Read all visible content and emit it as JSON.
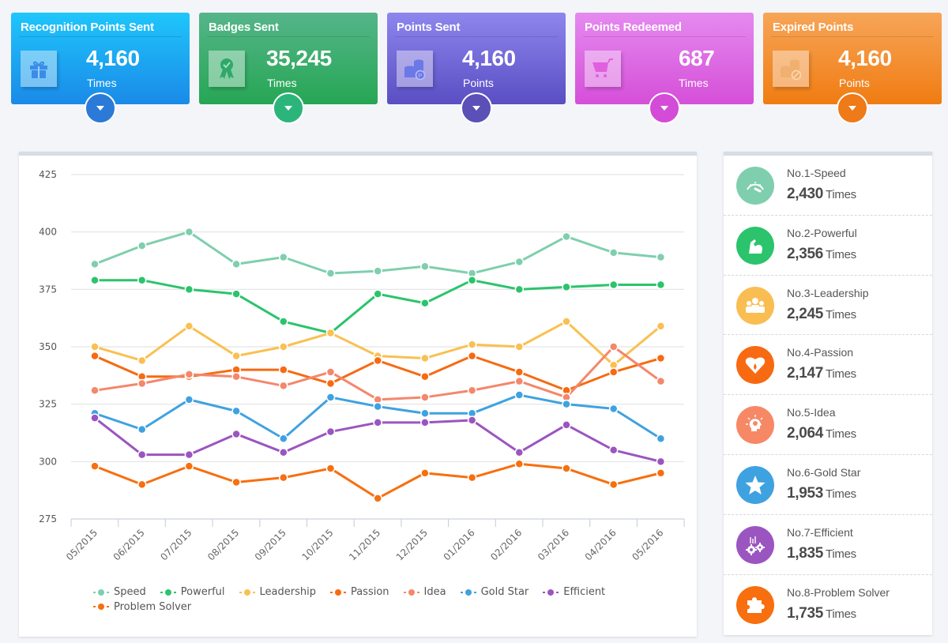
{
  "stat_cards": [
    {
      "title": "Recognition Points Sent",
      "value": "4,160",
      "unit": "Times",
      "icon": "gift-icon",
      "colors": {
        "top": "#1fc6fb",
        "bottom": "#1a8ae8",
        "toggle": "#2b7ad8"
      }
    },
    {
      "title": "Badges Sent",
      "value": "35,245",
      "unit": "Times",
      "icon": "badge-ribbon-icon",
      "colors": {
        "top": "#55b58a",
        "bottom": "#26a654",
        "toggle": "#2bb57a"
      }
    },
    {
      "title": "Points Sent",
      "value": "4,160",
      "unit": "Points",
      "icon": "coins-icon",
      "colors": {
        "top": "#8e86ee",
        "bottom": "#5a4ec3",
        "toggle": "#5b4fb8"
      }
    },
    {
      "title": "Points Redeemed",
      "value": "687",
      "unit": "Times",
      "icon": "shopping-cart-icon",
      "colors": {
        "top": "#e58af0",
        "bottom": "#d54fd8",
        "toggle": "#d44bd8"
      }
    },
    {
      "title": "Expired Points",
      "value": "4,160",
      "unit": "Points",
      "icon": "expired-coins-icon",
      "colors": {
        "top": "#f7a558",
        "bottom": "#f07c12",
        "toggle": "#ee7a18"
      }
    }
  ],
  "ranking": [
    {
      "label": "No.1-Speed",
      "count": "2,430",
      "unit": "Times",
      "icon": "speedometer-icon",
      "color": "#7fcfae"
    },
    {
      "label": "No.2-Powerful",
      "count": "2,356",
      "unit": "Times",
      "icon": "flexed-arm-icon",
      "color": "#2bc46c"
    },
    {
      "label": "No.3-Leadership",
      "count": "2,245",
      "unit": "Times",
      "icon": "group-icon",
      "color": "#f9bd52"
    },
    {
      "label": "No.4-Passion",
      "count": "2,147",
      "unit": "Times",
      "icon": "heart-flame-icon",
      "color": "#f76a12"
    },
    {
      "label": "No.5-Idea",
      "count": "2,064",
      "unit": "Times",
      "icon": "lightbulb-head-icon",
      "color": "#f78866"
    },
    {
      "label": "No.6-Gold Star",
      "count": "1,953",
      "unit": "Times",
      "icon": "star-icon",
      "color": "#3fa2e0"
    },
    {
      "label": "No.7-Efficient",
      "count": "1,835",
      "unit": "Times",
      "icon": "gears-icon",
      "color": "#9b55c0"
    },
    {
      "label": "No.8-Problem Solver",
      "count": "1,735",
      "unit": "Times",
      "icon": "puzzle-icon",
      "color": "#f76f0e"
    }
  ],
  "chart_data": {
    "type": "line",
    "title": "",
    "xlabel": "",
    "ylabel": "",
    "ylim": [
      275,
      425
    ],
    "yticks": [
      275,
      300,
      325,
      350,
      375,
      400,
      425
    ],
    "grid": true,
    "legend_position": "bottom",
    "x": [
      "05/2015",
      "06/2015",
      "07/2015",
      "08/2015",
      "09/2015",
      "10/2015",
      "11/2015",
      "12/2015",
      "01/2016",
      "02/2016",
      "03/2016",
      "04/2016",
      "05/2016"
    ],
    "series": [
      {
        "name": "Speed",
        "color": "#7fcfae",
        "values": [
          386,
          394,
          400,
          386,
          389,
          382,
          383,
          385,
          382,
          387,
          398,
          391,
          389
        ]
      },
      {
        "name": "Powerful",
        "color": "#2bc46c",
        "values": [
          379,
          379,
          375,
          373,
          361,
          356,
          373,
          369,
          379,
          375,
          376,
          377,
          377
        ]
      },
      {
        "name": "Leadership",
        "color": "#f9c052",
        "values": [
          350,
          344,
          359,
          346,
          350,
          356,
          346,
          345,
          351,
          350,
          361,
          342,
          359
        ]
      },
      {
        "name": "Passion",
        "color": "#f76a12",
        "values": [
          346,
          337,
          337,
          340,
          340,
          334,
          344,
          337,
          346,
          339,
          331,
          339,
          345
        ]
      },
      {
        "name": "Idea",
        "color": "#f4876c",
        "values": [
          331,
          334,
          338,
          337,
          333,
          339,
          327,
          328,
          331,
          335,
          328,
          350,
          335
        ]
      },
      {
        "name": "Gold Star",
        "color": "#3fa2e0",
        "values": [
          321,
          314,
          327,
          322,
          310,
          328,
          324,
          321,
          321,
          329,
          325,
          323,
          310
        ]
      },
      {
        "name": "Efficient",
        "color": "#9b55c0",
        "values": [
          319,
          303,
          303,
          312,
          304,
          313,
          317,
          317,
          318,
          304,
          316,
          305,
          300
        ]
      },
      {
        "name": "Problem Solver",
        "color": "#f76f0e",
        "values": [
          298,
          290,
          298,
          291,
          293,
          297,
          284,
          295,
          293,
          299,
          297,
          290,
          295
        ]
      }
    ]
  }
}
